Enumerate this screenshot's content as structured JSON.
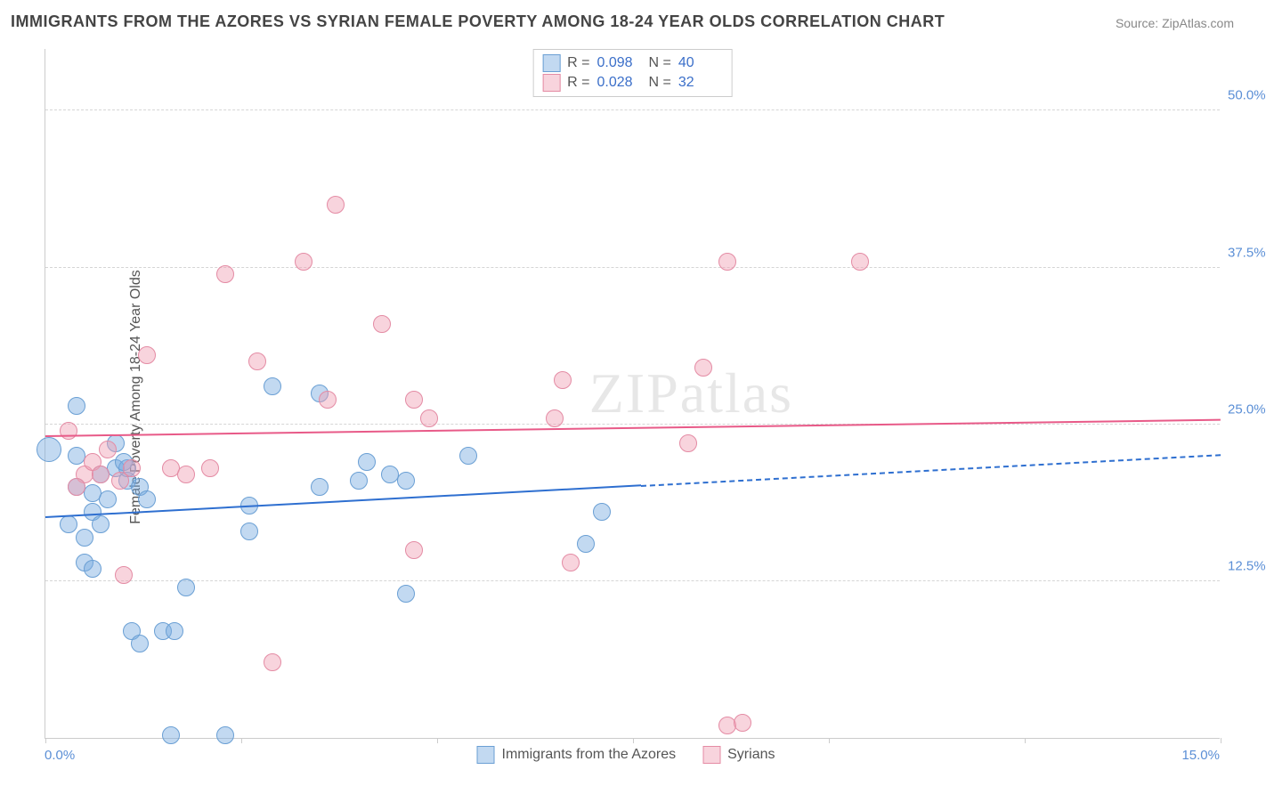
{
  "title": "IMMIGRANTS FROM THE AZORES VS SYRIAN FEMALE POVERTY AMONG 18-24 YEAR OLDS CORRELATION CHART",
  "source": "Source: ZipAtlas.com",
  "ylabel": "Female Poverty Among 18-24 Year Olds",
  "watermark": "ZIPatlas",
  "chart": {
    "type": "scatter",
    "xlim": [
      0,
      15
    ],
    "ylim": [
      0,
      55
    ],
    "x_min_label": "0.0%",
    "x_max_label": "15.0%",
    "y_ticks": [
      {
        "v": 12.5,
        "label": "12.5%"
      },
      {
        "v": 25.0,
        "label": "25.0%"
      },
      {
        "v": 37.5,
        "label": "37.5%"
      },
      {
        "v": 50.0,
        "label": "50.0%"
      }
    ],
    "x_tick_positions": [
      0,
      2.5,
      5,
      7.5,
      10,
      12.5,
      15
    ],
    "series": [
      {
        "id": "azores",
        "label": "Immigrants from the Azores",
        "color_fill": "rgba(120,170,225,0.45)",
        "color_stroke": "#6a9fd4",
        "trend_color": "#2e6fd0",
        "R": "0.098",
        "N": "40",
        "marker_radius": 10,
        "trend": {
          "x0": 0,
          "y0": 17.5,
          "x1": 15,
          "y1": 22.5,
          "solid_until_x": 7.6
        },
        "points": [
          {
            "x": 0.05,
            "y": 23.0,
            "r": 14
          },
          {
            "x": 0.4,
            "y": 26.5
          },
          {
            "x": 0.4,
            "y": 22.5
          },
          {
            "x": 0.4,
            "y": 20.0
          },
          {
            "x": 0.6,
            "y": 18.0
          },
          {
            "x": 0.6,
            "y": 19.5
          },
          {
            "x": 0.7,
            "y": 21.0
          },
          {
            "x": 0.7,
            "y": 17.0
          },
          {
            "x": 0.5,
            "y": 16.0
          },
          {
            "x": 0.5,
            "y": 14.0
          },
          {
            "x": 0.6,
            "y": 13.5
          },
          {
            "x": 0.9,
            "y": 23.5
          },
          {
            "x": 0.9,
            "y": 21.5
          },
          {
            "x": 1.05,
            "y": 20.5
          },
          {
            "x": 1.05,
            "y": 21.5
          },
          {
            "x": 1.0,
            "y": 22.0
          },
          {
            "x": 1.2,
            "y": 20.0
          },
          {
            "x": 1.3,
            "y": 19.0
          },
          {
            "x": 1.1,
            "y": 8.5
          },
          {
            "x": 1.2,
            "y": 7.5
          },
          {
            "x": 1.5,
            "y": 8.5
          },
          {
            "x": 1.65,
            "y": 8.5
          },
          {
            "x": 1.8,
            "y": 12.0
          },
          {
            "x": 1.6,
            "y": 0.2
          },
          {
            "x": 2.3,
            "y": 0.2
          },
          {
            "x": 2.6,
            "y": 16.5
          },
          {
            "x": 2.6,
            "y": 18.5
          },
          {
            "x": 2.9,
            "y": 28.0
          },
          {
            "x": 3.5,
            "y": 27.5
          },
          {
            "x": 3.5,
            "y": 20.0
          },
          {
            "x": 4.0,
            "y": 20.5
          },
          {
            "x": 4.1,
            "y": 22.0
          },
          {
            "x": 4.4,
            "y": 21.0
          },
          {
            "x": 4.6,
            "y": 11.5
          },
          {
            "x": 4.6,
            "y": 20.5
          },
          {
            "x": 5.4,
            "y": 22.5
          },
          {
            "x": 6.9,
            "y": 15.5
          },
          {
            "x": 7.1,
            "y": 18.0
          },
          {
            "x": 0.8,
            "y": 19.0
          },
          {
            "x": 0.3,
            "y": 17.0
          }
        ]
      },
      {
        "id": "syrians",
        "label": "Syrians",
        "color_fill": "rgba(240,160,180,0.45)",
        "color_stroke": "#e48ba4",
        "trend_color": "#e85a88",
        "R": "0.028",
        "N": "32",
        "marker_radius": 10,
        "trend": {
          "x0": 0,
          "y0": 24.0,
          "x1": 15,
          "y1": 25.3,
          "solid_until_x": 15
        },
        "points": [
          {
            "x": 0.3,
            "y": 24.5
          },
          {
            "x": 0.5,
            "y": 21.0
          },
          {
            "x": 0.6,
            "y": 22.0
          },
          {
            "x": 0.7,
            "y": 21.0
          },
          {
            "x": 0.8,
            "y": 23.0
          },
          {
            "x": 0.95,
            "y": 20.5
          },
          {
            "x": 1.1,
            "y": 21.5
          },
          {
            "x": 1.3,
            "y": 30.5
          },
          {
            "x": 1.6,
            "y": 21.5
          },
          {
            "x": 1.8,
            "y": 21.0
          },
          {
            "x": 2.1,
            "y": 21.5
          },
          {
            "x": 2.3,
            "y": 37.0
          },
          {
            "x": 2.7,
            "y": 30.0
          },
          {
            "x": 2.9,
            "y": 6.0
          },
          {
            "x": 3.3,
            "y": 38.0
          },
          {
            "x": 3.7,
            "y": 42.5
          },
          {
            "x": 3.6,
            "y": 27.0
          },
          {
            "x": 4.3,
            "y": 33.0
          },
          {
            "x": 4.7,
            "y": 27.0
          },
          {
            "x": 4.7,
            "y": 15.0
          },
          {
            "x": 4.9,
            "y": 25.5
          },
          {
            "x": 6.5,
            "y": 25.5
          },
          {
            "x": 6.7,
            "y": 14.0
          },
          {
            "x": 6.6,
            "y": 28.5
          },
          {
            "x": 8.2,
            "y": 23.5
          },
          {
            "x": 8.4,
            "y": 29.5
          },
          {
            "x": 8.7,
            "y": 38.0
          },
          {
            "x": 8.7,
            "y": 1.0
          },
          {
            "x": 8.9,
            "y": 1.2
          },
          {
            "x": 10.4,
            "y": 38.0
          },
          {
            "x": 0.4,
            "y": 20.0
          },
          {
            "x": 1.0,
            "y": 13.0
          }
        ]
      }
    ]
  },
  "colors": {
    "title": "#444444",
    "source": "#888888",
    "axis_label": "#555555",
    "tick_label": "#5b8fd6",
    "grid": "#d5d5d5",
    "border": "#cccccc",
    "background": "#ffffff"
  }
}
